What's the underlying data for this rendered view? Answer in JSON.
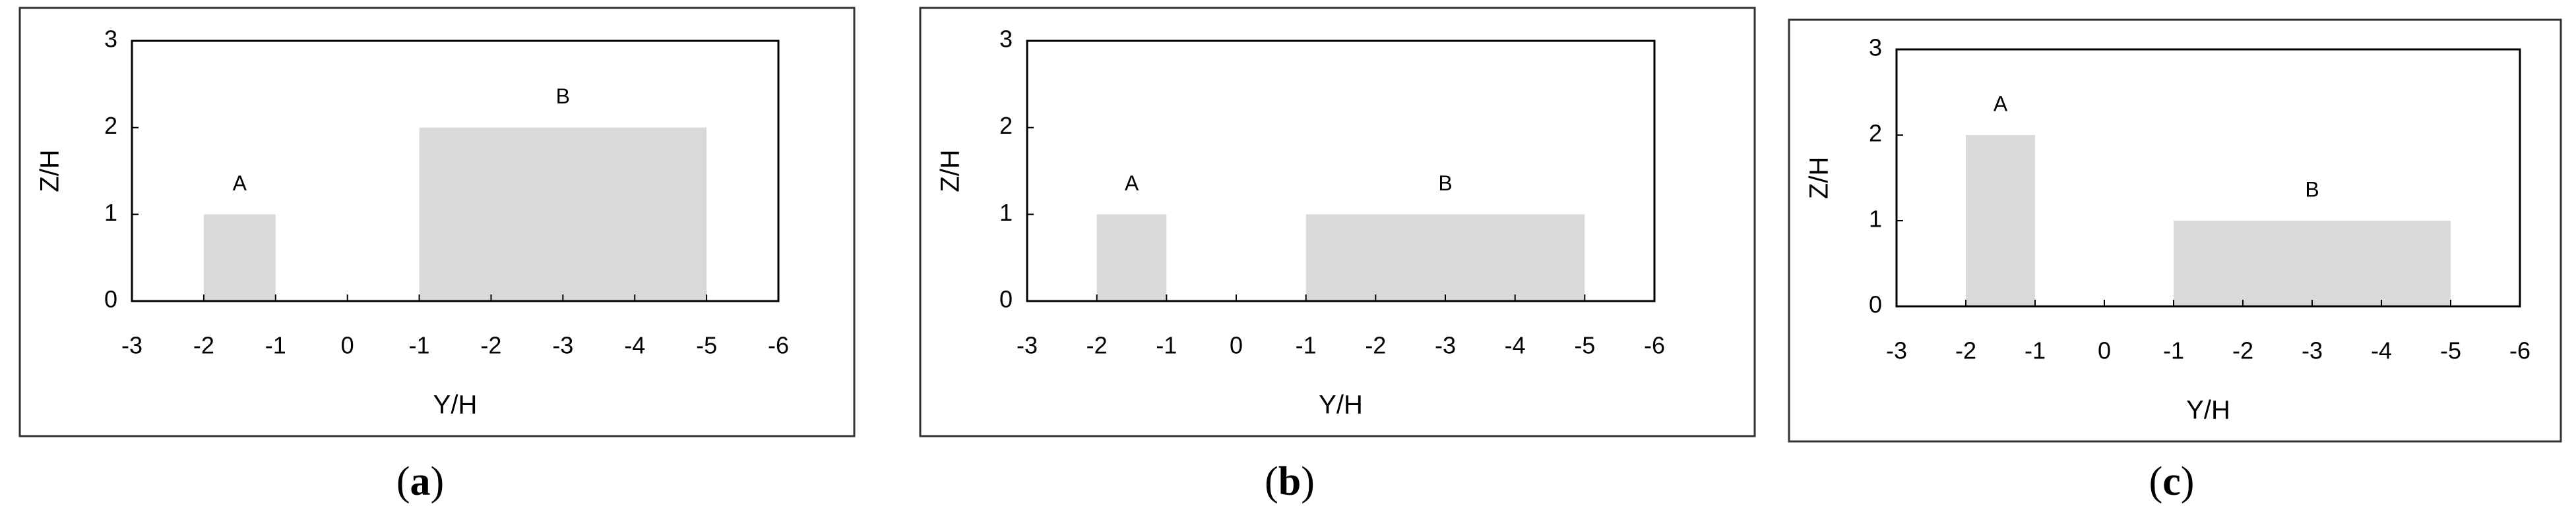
{
  "chart_data": [
    {
      "type": "rect",
      "caption_open": "(",
      "caption_label": "a",
      "caption_close": ")",
      "xlabel": "Y/H",
      "ylabel": "Z/H",
      "xlim": [
        -3,
        6
      ],
      "ylim": [
        0,
        3
      ],
      "yticks": [
        0,
        1,
        2,
        3
      ],
      "xticks": [
        -3,
        -2,
        -1,
        0,
        {
          "value": 1,
          "label": "-1"
        },
        {
          "value": 2,
          "label": "-2"
        },
        {
          "value": 3,
          "label": "-3"
        },
        {
          "value": 4,
          "label": "-4"
        },
        {
          "value": 5,
          "label": "-5"
        },
        {
          "value": 6,
          "label": "-6"
        }
      ],
      "color": "#d9d9d9",
      "buildings": [
        {
          "name": "A",
          "x": [
            -2,
            -1
          ],
          "height": 1
        },
        {
          "name": "B",
          "x": [
            1,
            5
          ],
          "height": 2
        }
      ]
    },
    {
      "type": "rect",
      "caption_open": "(",
      "caption_label": "b",
      "caption_close": ")",
      "xlabel": "Y/H",
      "ylabel": "Z/H",
      "xlim": [
        -3,
        6
      ],
      "ylim": [
        0,
        3
      ],
      "yticks": [
        0,
        1,
        2,
        3
      ],
      "xticks": [
        -3,
        -2,
        -1,
        0,
        {
          "value": 1,
          "label": "-1"
        },
        {
          "value": 2,
          "label": "-2"
        },
        {
          "value": 3,
          "label": "-3"
        },
        {
          "value": 4,
          "label": "-4"
        },
        {
          "value": 5,
          "label": "-5"
        },
        {
          "value": 6,
          "label": "-6"
        }
      ],
      "color": "#d9d9d9",
      "buildings": [
        {
          "name": "A",
          "x": [
            -2,
            -1
          ],
          "height": 1
        },
        {
          "name": "B",
          "x": [
            1,
            5
          ],
          "height": 1
        }
      ]
    },
    {
      "type": "rect",
      "caption_open": "(",
      "caption_label": "c",
      "caption_close": ")",
      "xlabel": "Y/H",
      "ylabel": "Z/H",
      "xlim": [
        -3,
        6
      ],
      "ylim": [
        0,
        3
      ],
      "yticks": [
        0,
        1,
        2,
        3
      ],
      "xticks": [
        -3,
        -2,
        -1,
        0,
        {
          "value": 1,
          "label": "-1"
        },
        {
          "value": 2,
          "label": "-2"
        },
        {
          "value": 3,
          "label": "-3"
        },
        {
          "value": 4,
          "label": "-4"
        },
        {
          "value": 5,
          "label": "-5"
        },
        {
          "value": 6,
          "label": "-6"
        }
      ],
      "color": "#d9d9d9",
      "buildings": [
        {
          "name": "A",
          "x": [
            -2,
            -1
          ],
          "height": 2
        },
        {
          "name": "B",
          "x": [
            1,
            5
          ],
          "height": 1
        }
      ]
    }
  ]
}
